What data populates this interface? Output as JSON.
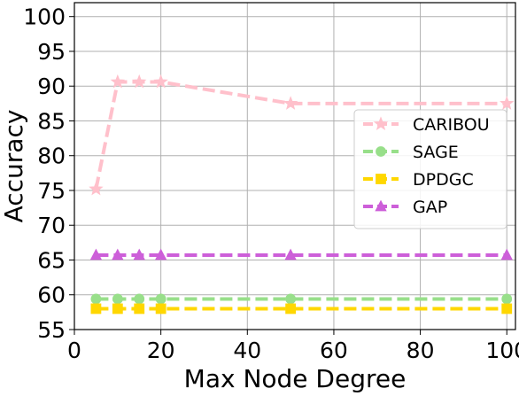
{
  "chart_data": {
    "type": "line",
    "xlabel": "Max Node Degree",
    "ylabel": "Accuracy",
    "xlim": [
      0,
      102
    ],
    "ylim": [
      55,
      102
    ],
    "xticks": [
      "0",
      "20",
      "40",
      "60",
      "80",
      "100"
    ],
    "yticks": [
      "55",
      "60",
      "65",
      "70",
      "75",
      "80",
      "85",
      "90",
      "95",
      "100"
    ],
    "grid": true,
    "legend_position": "center-right",
    "x": [
      5,
      10,
      15,
      20,
      50,
      100
    ],
    "series": [
      {
        "name": "CARIBOU",
        "values": [
          75.2,
          90.6,
          90.6,
          90.6,
          87.5,
          87.5
        ],
        "color": "#ffc0cb",
        "marker": "star"
      },
      {
        "name": "SAGE",
        "values": [
          59.4,
          59.4,
          59.4,
          59.4,
          59.4,
          59.4
        ],
        "color": "#98df8a",
        "marker": "circle"
      },
      {
        "name": "DPDGC",
        "values": [
          58.0,
          58.0,
          58.0,
          58.0,
          58.0,
          58.0
        ],
        "color": "#ffd700",
        "marker": "square"
      },
      {
        "name": "GAP",
        "values": [
          65.7,
          65.7,
          65.7,
          65.7,
          65.7,
          65.7
        ],
        "color": "#cd5fd9",
        "marker": "triangle"
      }
    ]
  }
}
